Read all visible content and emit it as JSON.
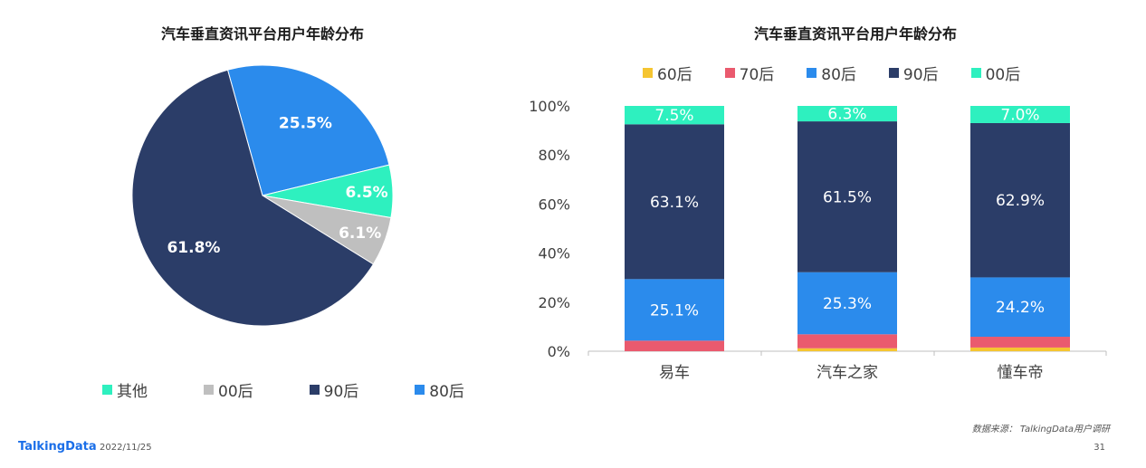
{
  "pie": {
    "title": "汽车垂直资讯平台用户年龄分布",
    "legend": [
      {
        "label": "其他",
        "color": "#2ef0bf"
      },
      {
        "label": "00后",
        "color": "#bfbfbf"
      },
      {
        "label": "90后",
        "color": "#2b3d68"
      },
      {
        "label": "80后",
        "color": "#2b8bec"
      }
    ]
  },
  "bar": {
    "title": "汽车垂直资讯平台用户年龄分布",
    "legend": [
      {
        "label": "60后",
        "color": "#f5c531"
      },
      {
        "label": "70后",
        "color": "#ea5a6e"
      },
      {
        "label": "80后",
        "color": "#2b8bec"
      },
      {
        "label": "90后",
        "color": "#2b3d68"
      },
      {
        "label": "00后",
        "color": "#2ef0bf"
      }
    ]
  },
  "chart_data": [
    {
      "type": "pie",
      "title": "汽车垂直资讯平台用户年龄分布",
      "slices": [
        {
          "label": "80后",
          "value": 25.5,
          "display": "25.5%",
          "color": "#2b8bec"
        },
        {
          "label": "其他",
          "value": 6.5,
          "display": "6.5%",
          "color": "#2ef0bf"
        },
        {
          "label": "00后",
          "value": 6.1,
          "display": "6.1%",
          "color": "#bfbfbf"
        },
        {
          "label": "90后",
          "value": 61.8,
          "display": "61.8%",
          "color": "#2b3d68"
        }
      ],
      "legend_position": "bottom"
    },
    {
      "type": "bar",
      "stacked": true,
      "title": "汽车垂直资讯平台用户年龄分布",
      "categories": [
        "易车",
        "汽车之家",
        "懂车帝"
      ],
      "ylim": [
        0,
        100
      ],
      "yticks": [
        "0%",
        "20%",
        "40%",
        "60%",
        "80%",
        "100%"
      ],
      "series": [
        {
          "name": "60后",
          "values": [
            0.0,
            1.2,
            1.5
          ],
          "labels": [
            "",
            "",
            ""
          ],
          "color": "#f5c531"
        },
        {
          "name": "70后",
          "values": [
            4.3,
            5.7,
            4.4
          ],
          "labels": [
            "",
            "",
            ""
          ],
          "color": "#ea5a6e"
        },
        {
          "name": "80后",
          "values": [
            25.1,
            25.3,
            24.2
          ],
          "labels": [
            "25.1%",
            "25.3%",
            "24.2%"
          ],
          "color": "#2b8bec"
        },
        {
          "name": "90后",
          "values": [
            63.1,
            61.5,
            62.9
          ],
          "labels": [
            "63.1%",
            "61.5%",
            "62.9%"
          ],
          "color": "#2b3d68"
        },
        {
          "name": "00后",
          "values": [
            7.5,
            6.3,
            7.0
          ],
          "labels": [
            "7.5%",
            "6.3%",
            "7.0%"
          ],
          "color": "#2ef0bf"
        }
      ],
      "legend_position": "top",
      "grid": false
    }
  ],
  "footer": {
    "brand": "TalkingData",
    "date": "2022/11/25",
    "source": "数据来源： TalkingData用户调研",
    "page": "31"
  }
}
